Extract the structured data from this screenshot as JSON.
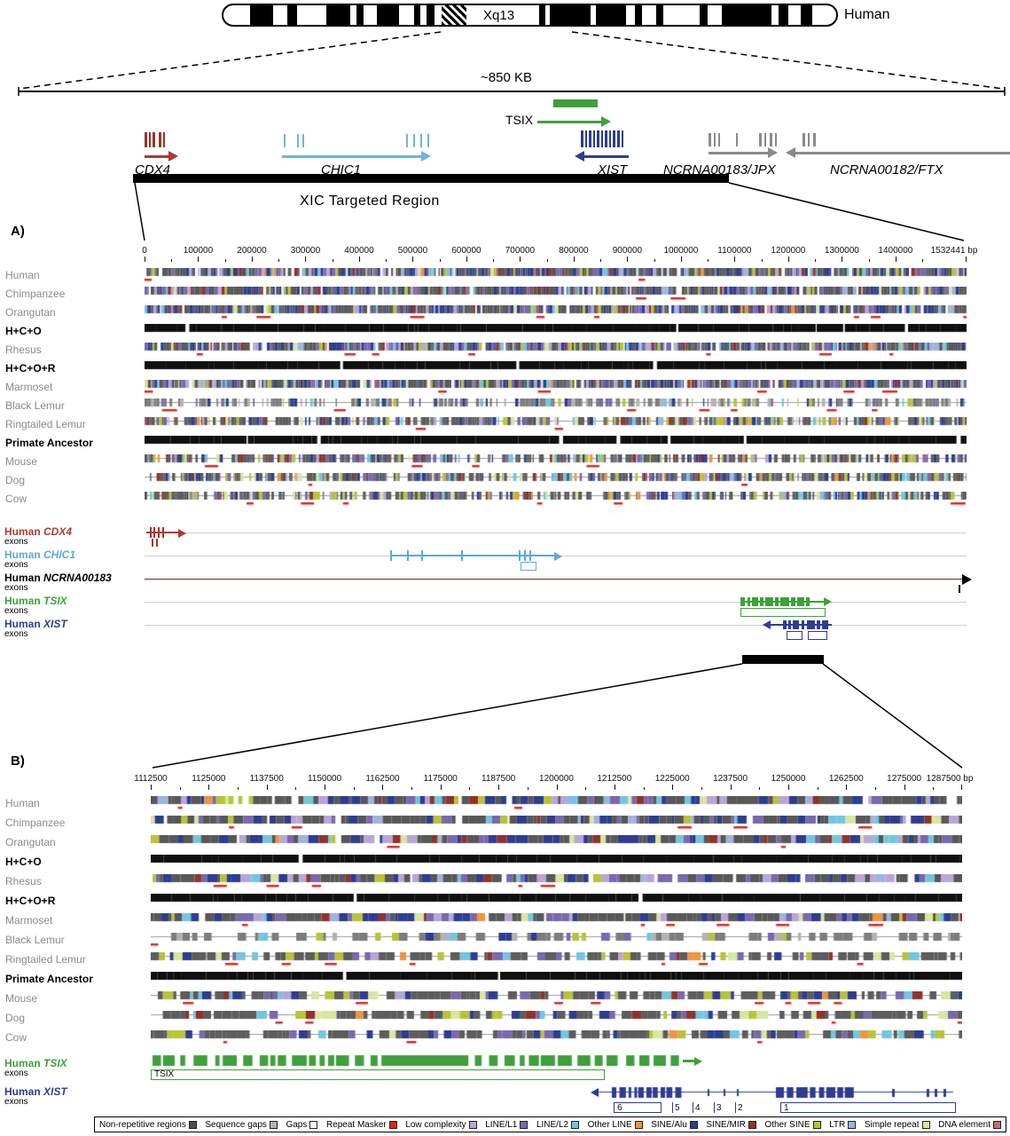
{
  "ideogram": {
    "band_label": "Xq13",
    "species": "Human"
  },
  "overview": {
    "scale_label": "~850 KB",
    "tsix_label": "TSIX",
    "genes": {
      "cdx4": "CDX4",
      "chic1": "CHIC1",
      "xist": "XIST",
      "jpx": "NCRNA00183/JPX",
      "ftx": "NCRNA00182/FTX"
    },
    "targeted_label": "XIC Targeted Region"
  },
  "species_tracks": [
    {
      "name": "Human",
      "style": "ape",
      "bold": false
    },
    {
      "name": "Chimpanzee",
      "style": "ape",
      "bold": false
    },
    {
      "name": "Orangutan",
      "style": "ape",
      "bold": false
    },
    {
      "name": "H+C+O",
      "style": "anc",
      "bold": true
    },
    {
      "name": "Rhesus",
      "style": "ape",
      "bold": false
    },
    {
      "name": "H+C+O+R",
      "style": "anc",
      "bold": true
    },
    {
      "name": "Marmoset",
      "style": "ape",
      "bold": false
    },
    {
      "name": "Black Lemur",
      "style": "sparse",
      "bold": false
    },
    {
      "name": "Ringtailed Lemur",
      "style": "out",
      "bold": false
    },
    {
      "name": "Primate Ancestor",
      "style": "anc",
      "bold": true
    },
    {
      "name": "Mouse",
      "style": "out",
      "bold": false
    },
    {
      "name": "Dog",
      "style": "out",
      "bold": false
    },
    {
      "name": "Cow",
      "style": "out",
      "bold": false
    }
  ],
  "panelA": {
    "label": "A)",
    "axis": {
      "start": 0,
      "end": 1532441,
      "major_step": 100000,
      "minor_step": 50000,
      "ticks": [
        "0",
        "100000",
        "200000",
        "300000",
        "400000",
        "500000",
        "600000",
        "700000",
        "800000",
        "900000",
        "1000000",
        "1100000",
        "1200000",
        "1300000",
        "1400000"
      ],
      "end_label": "1532441 bp"
    },
    "gene_tracks": [
      {
        "species": "Human",
        "gene": "CDX4",
        "sub": "exons",
        "color": "#b03a2e"
      },
      {
        "species": "Human",
        "gene": "CHIC1",
        "sub": "exons",
        "color": "#5fa8dc"
      },
      {
        "species": "Human",
        "gene": "NCRNA00183",
        "sub": "exons",
        "color": "#000000"
      },
      {
        "species": "Human",
        "gene": "TSIX",
        "sub": "exons",
        "color": "#3fa03c"
      },
      {
        "species": "Human",
        "gene": "XIST",
        "sub": "exons",
        "color": "#2e3d92"
      }
    ]
  },
  "panelB": {
    "label": "B)",
    "axis": {
      "start": 1112500,
      "end": 1287500,
      "major_step": 12500,
      "minor_step": 6250,
      "ticks": [
        "1112500",
        "1125000",
        "1137500",
        "1150000",
        "1162500",
        "1175000",
        "1187500",
        "1200000",
        "1212500",
        "1225000",
        "1237500",
        "1250000",
        "1262500",
        "1275000"
      ],
      "end_label": "1287500 bp"
    },
    "gene_tracks": [
      {
        "species": "Human",
        "gene": "TSIX",
        "sub": "exons",
        "color": "#3fa03c",
        "box_label": "TSIX"
      },
      {
        "species": "Human",
        "gene": "XIST",
        "sub": "exons",
        "color": "#2e3d92",
        "exon_numbers": [
          "6",
          "5",
          "4",
          "3",
          "2",
          "1"
        ]
      }
    ]
  },
  "legend": {
    "items": [
      {
        "key": "nonrep",
        "label": "Non-repetitive regions",
        "color": "#4d4d4d"
      },
      {
        "key": "seqgap",
        "label": "Sequence gaps",
        "color": "#b3b3b3"
      },
      {
        "key": "gap",
        "label": "Gaps",
        "color": "#ffffff"
      },
      {
        "key": "rm",
        "label": "Repeat Masker",
        "color": "#e0241c"
      },
      {
        "key": "lowc",
        "label": "Low complexity",
        "color": "#b9a6d8"
      },
      {
        "key": "l1",
        "label": "LINE/L1",
        "color": "#7a68b0"
      },
      {
        "key": "l2",
        "label": "LINE/L2",
        "color": "#72c7e0"
      },
      {
        "key": "oline",
        "label": "Other LINE",
        "color": "#ef9440"
      },
      {
        "key": "alu",
        "label": "SINE/Alu",
        "color": "#2e3d92"
      },
      {
        "key": "mir",
        "label": "SINE/MIR",
        "color": "#93322a"
      },
      {
        "key": "osine",
        "label": "Other SINE",
        "color": "#b8c437"
      },
      {
        "key": "ltr",
        "label": "LTR",
        "color": "#9fb3df"
      },
      {
        "key": "simple",
        "label": "Simple repeat",
        "color": "#d9e6a0"
      },
      {
        "key": "dna",
        "label": "DNA element",
        "color": "#c76f6f"
      }
    ]
  },
  "colors": {
    "tsix": "#3fa03c",
    "xist": "#2e3d92",
    "cdx4": "#b03a2e",
    "chic1": "#5fa8dc",
    "gene_gray": "#8a8a8a",
    "repeat_mark": "#e0241c"
  }
}
